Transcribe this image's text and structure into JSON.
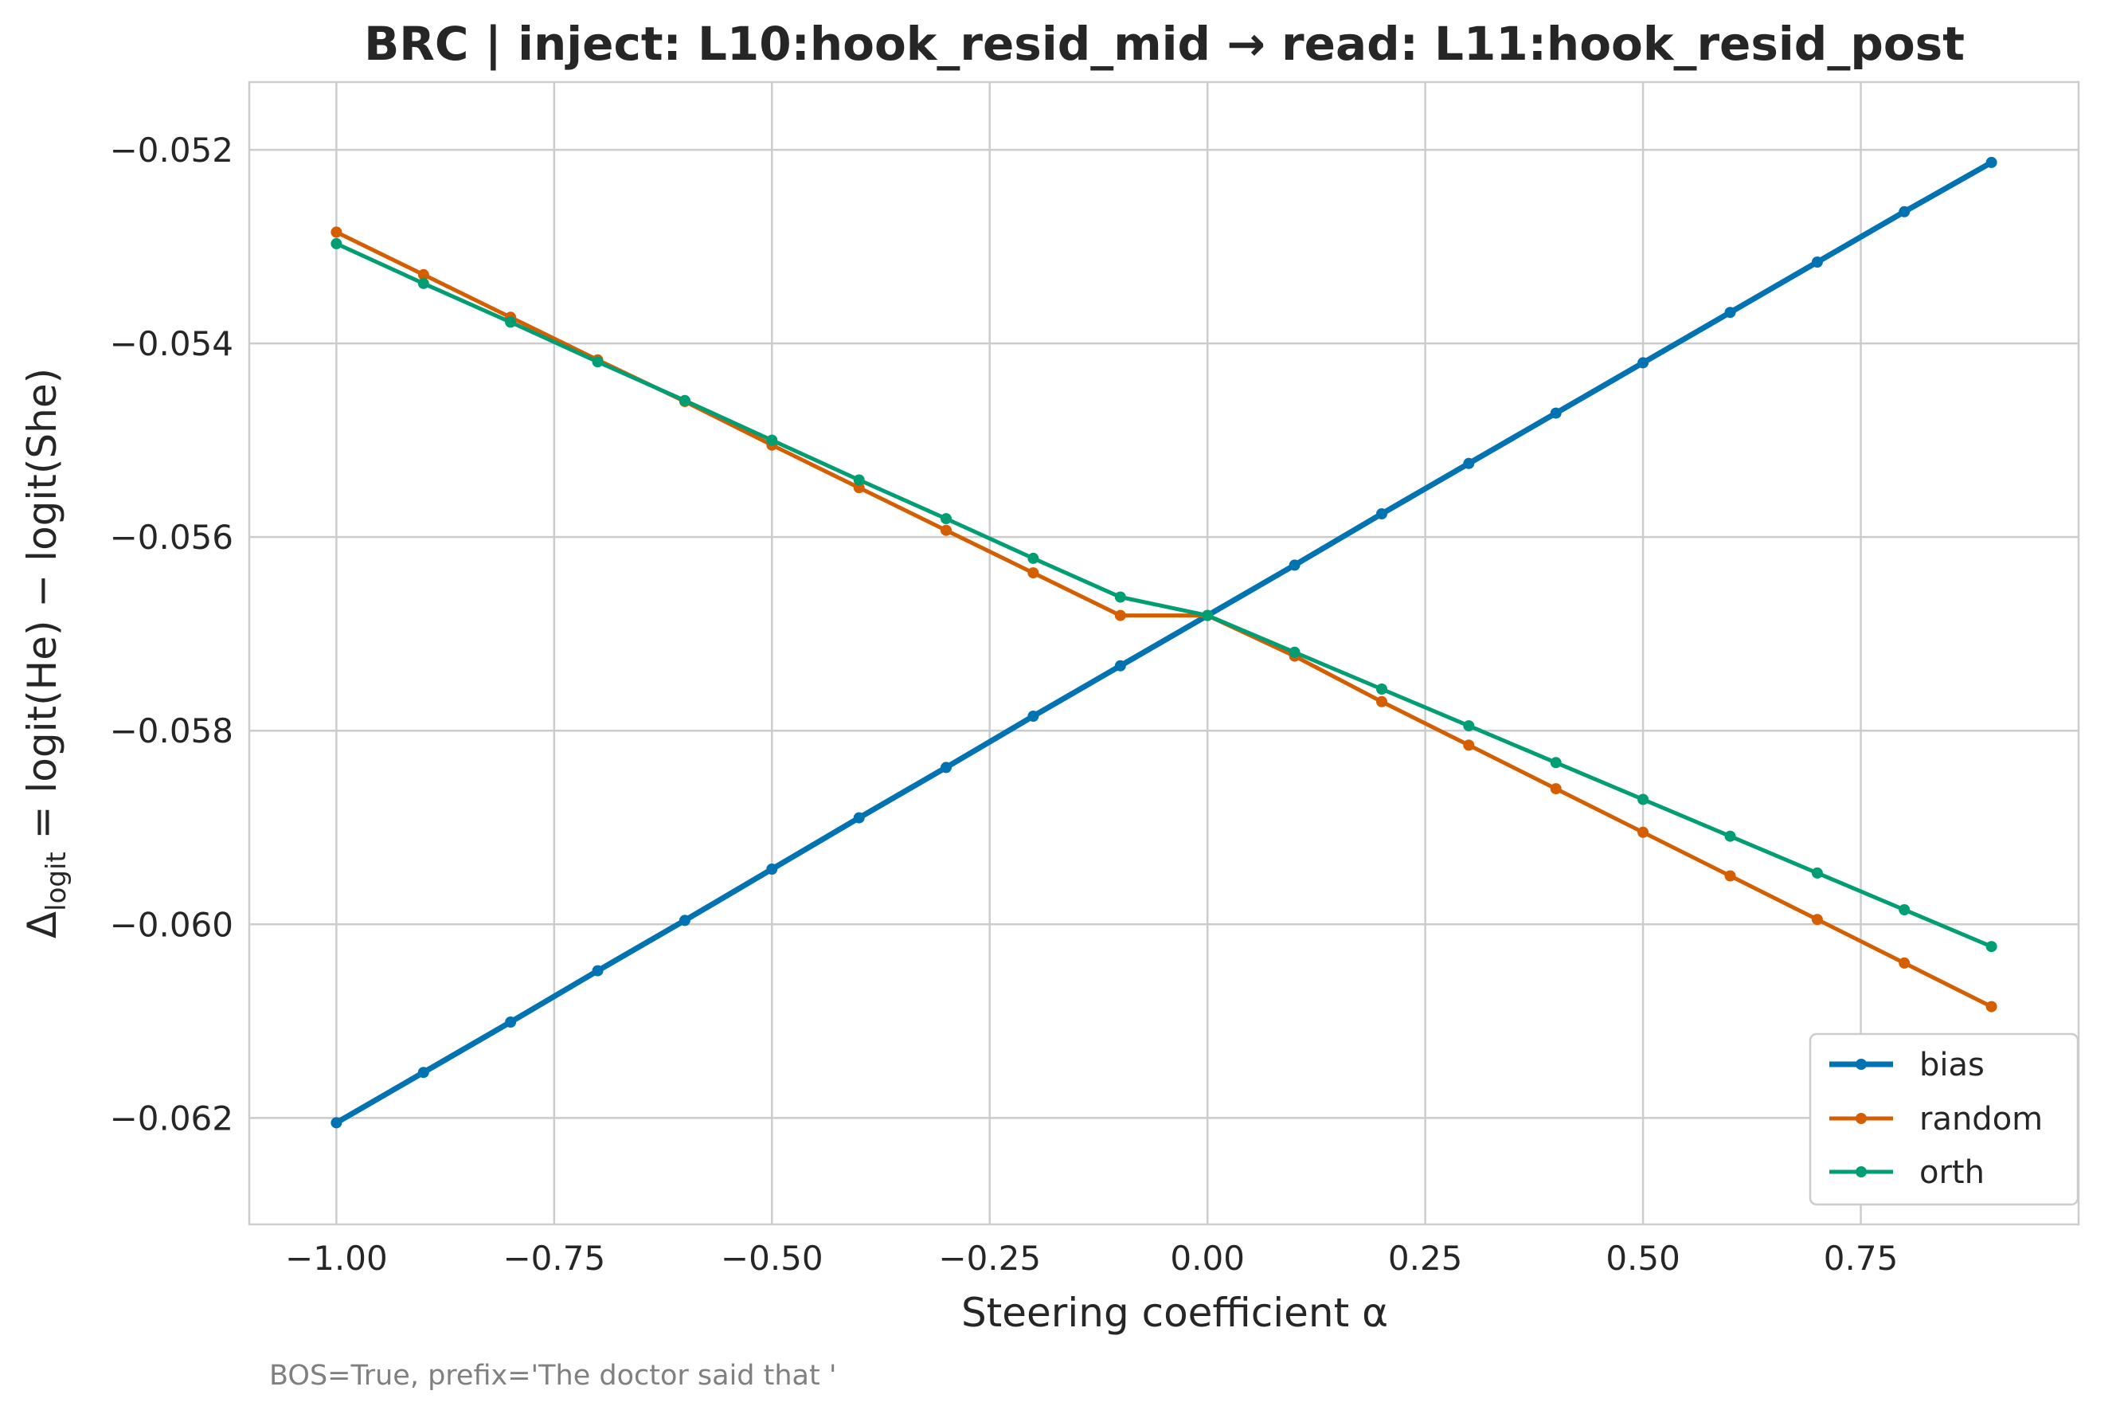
{
  "chart_data": {
    "type": "line",
    "title": "BRC | inject: L10:hook_resid_mid → read: L11:hook_resid_post",
    "xlabel": "Steering coefficient α",
    "ylabel": {
      "prefix": "Δ",
      "subscript": "logit",
      "suffix": " = logit(He) − logit(She)"
    },
    "xlim": [
      -1.1,
      1.0
    ],
    "ylim": [
      -0.0631,
      -0.0513
    ],
    "xticks": [
      {
        "value": -1.0,
        "label": "−1.00"
      },
      {
        "value": -0.75,
        "label": "−0.75"
      },
      {
        "value": -0.5,
        "label": "−0.50"
      },
      {
        "value": -0.25,
        "label": "−0.25"
      },
      {
        "value": 0.0,
        "label": "0.00"
      },
      {
        "value": 0.25,
        "label": "0.25"
      },
      {
        "value": 0.5,
        "label": "0.50"
      },
      {
        "value": 0.75,
        "label": "0.75"
      }
    ],
    "yticks": [
      {
        "value": -0.062,
        "label": "−0.062"
      },
      {
        "value": -0.06,
        "label": "−0.060"
      },
      {
        "value": -0.058,
        "label": "−0.058"
      },
      {
        "value": -0.056,
        "label": "−0.056"
      },
      {
        "value": -0.054,
        "label": "−0.054"
      },
      {
        "value": -0.052,
        "label": "−0.052"
      }
    ],
    "grid": true,
    "legend_position": "lower right",
    "x": [
      -1.0,
      -0.9,
      -0.8,
      -0.7,
      -0.6,
      -0.5,
      -0.4,
      -0.3,
      -0.2,
      -0.1,
      0.0,
      0.1,
      0.2,
      0.3,
      0.4,
      0.5,
      0.6,
      0.7,
      0.8,
      0.9
    ],
    "series": [
      {
        "name": "bias",
        "color": "#0173b2",
        "values": [
          -0.06205,
          -0.06153,
          -0.06101,
          -0.06048,
          -0.05996,
          -0.05943,
          -0.0589,
          -0.05838,
          -0.05785,
          -0.05733,
          -0.05681,
          -0.05629,
          -0.05576,
          -0.05524,
          -0.05472,
          -0.0542,
          -0.05368,
          -0.05316,
          -0.05264,
          -0.05213
        ]
      },
      {
        "name": "random",
        "color": "#d55e00",
        "values": [
          -0.05285,
          -0.05329,
          -0.05373,
          -0.05417,
          -0.0546,
          -0.05505,
          -0.05549,
          -0.05593,
          -0.05637,
          -0.05681,
          -0.05681,
          -0.05723,
          -0.0577,
          -0.05815,
          -0.0586,
          -0.05905,
          -0.0595,
          -0.05995,
          -0.0604,
          -0.06085
        ]
      },
      {
        "name": "orth",
        "color": "#029e73",
        "values": [
          -0.05297,
          -0.05338,
          -0.05378,
          -0.05419,
          -0.05459,
          -0.055,
          -0.05541,
          -0.05581,
          -0.05622,
          -0.05662,
          -0.05681,
          -0.05719,
          -0.05757,
          -0.05795,
          -0.05833,
          -0.05871,
          -0.05909,
          -0.05947,
          -0.05985,
          -0.06023
        ]
      }
    ],
    "footnote": "BOS=True, prefix='The doctor said that '"
  }
}
